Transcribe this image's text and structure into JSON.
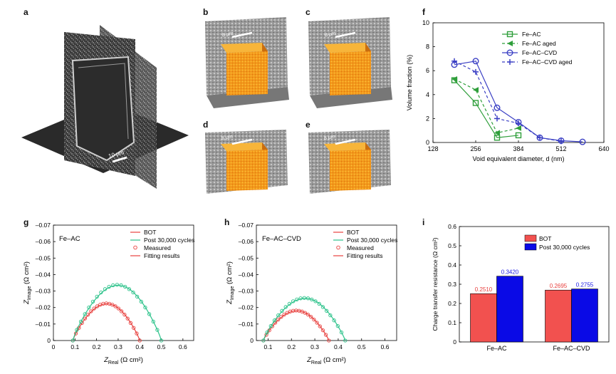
{
  "panel_letters": {
    "a": "a",
    "b": "b",
    "c": "c",
    "d": "d",
    "e": "e",
    "f": "f",
    "g": "g",
    "h": "h",
    "i": "i"
  },
  "scalebars": {
    "a": "10 μm",
    "b": "8 μm",
    "c": "8 μm",
    "d": "8 μm",
    "e": "8 μm"
  },
  "colors": {
    "fe_ac": "#2e9e3a",
    "fe_ac_cvd": "#3a3fc4",
    "bot_line": "#e8413f",
    "post_line": "#2cc28a",
    "bar_bot": "#f2514f",
    "bar_post": "#0a0ae6"
  },
  "chart_data": [
    {
      "id": "f",
      "type": "line",
      "xlabel": "Void equivalent diameter, d (nm)",
      "ylabel": "Volume fraction (%)",
      "xlim": [
        128,
        640
      ],
      "ylim": [
        0,
        10
      ],
      "xticks": [
        128,
        256,
        384,
        512,
        640
      ],
      "yticks": [
        0,
        2,
        4,
        6,
        8,
        10
      ],
      "legend_position": "top-right",
      "series": [
        {
          "name": "Fe–AC",
          "style": "solid",
          "marker": "square",
          "color": "#2e9e3a",
          "x": [
            192,
            256,
            320,
            384
          ],
          "y": [
            5.2,
            3.3,
            0.4,
            0.6
          ]
        },
        {
          "name": "Fe–AC aged",
          "style": "dashed",
          "marker": "triangle",
          "color": "#2e9e3a",
          "x": [
            192,
            256,
            320,
            384
          ],
          "y": [
            5.3,
            4.4,
            0.8,
            1.2
          ]
        },
        {
          "name": "Fe–AC–CVD",
          "style": "solid",
          "marker": "circle",
          "color": "#3a3fc4",
          "x": [
            192,
            256,
            320,
            384,
            448,
            512,
            576
          ],
          "y": [
            6.5,
            6.8,
            2.9,
            1.7,
            0.4,
            0.15,
            0.05
          ]
        },
        {
          "name": "Fe–AC–CVD aged",
          "style": "dashed",
          "marker": "plus",
          "color": "#3a3fc4",
          "x": [
            192,
            256,
            320,
            384,
            448,
            512
          ],
          "y": [
            6.8,
            5.9,
            2.0,
            1.6,
            0.4,
            0.1
          ]
        }
      ]
    },
    {
      "id": "g",
      "type": "scatter",
      "annotation": "Fe–AC",
      "xlabel_main": "Z",
      "xlabel_sub": "Real",
      "xlabel_unit": " (Ω cm²)",
      "ylabel_main": "Z",
      "ylabel_sub": "Image",
      "ylabel_unit": " (Ω cm²)",
      "xlim": [
        0,
        0.65
      ],
      "ylim": [
        0,
        -0.07
      ],
      "xticks": [
        0,
        0.1,
        0.2,
        0.3,
        0.4,
        0.5,
        0.6
      ],
      "xtick_labels": [
        "0",
        "0.1",
        "0.2",
        "0.3",
        "0.4",
        "0.5",
        "0.6"
      ],
      "yticks": [
        0,
        -0.01,
        -0.02,
        -0.03,
        -0.04,
        -0.05,
        -0.06,
        -0.07
      ],
      "ytick_labels": [
        "0",
        "–0.01",
        "–0.02",
        "–0.03",
        "–0.04",
        "–0.05",
        "–0.06",
        "–0.07"
      ],
      "legend": [
        "BOT",
        "Post 30,000 cycles",
        "Measured",
        "Fitting results"
      ],
      "series": [
        {
          "name": "BOT",
          "color": "#e8413f",
          "x0": 0.09,
          "x1": 0.4,
          "peak": -0.0225
        },
        {
          "name": "Post 30,000 cycles",
          "color": "#2cc28a",
          "x0": 0.09,
          "x1": 0.5,
          "peak": -0.0338
        }
      ]
    },
    {
      "id": "h",
      "type": "scatter",
      "annotation": "Fe–AC–CVD",
      "xlabel_main": "Z",
      "xlabel_sub": "Real",
      "xlabel_unit": " (Ω cm²)",
      "ylabel_main": "Z",
      "ylabel_sub": "Image",
      "ylabel_unit": " (Ω cm²)",
      "xlim": [
        0.05,
        0.65
      ],
      "ylim": [
        0,
        -0.07
      ],
      "xticks": [
        0.1,
        0.2,
        0.3,
        0.4,
        0.5,
        0.6
      ],
      "xtick_labels": [
        "0.1",
        "0.2",
        "0.3",
        "0.4",
        "0.5",
        "0.6"
      ],
      "yticks": [
        0,
        -0.01,
        -0.02,
        -0.03,
        -0.04,
        -0.05,
        -0.06,
        -0.07
      ],
      "ytick_labels": [
        "0",
        "–0.01",
        "–0.02",
        "–0.03",
        "–0.04",
        "–0.05",
        "–0.06",
        "–0.07"
      ],
      "legend": [
        "BOT",
        "Post 30,000 cycles",
        "Measured",
        "Fitting results"
      ],
      "series": [
        {
          "name": "BOT",
          "color": "#e8413f",
          "x0": 0.08,
          "x1": 0.36,
          "peak": -0.0182
        },
        {
          "name": "Post 30,000 cycles",
          "color": "#2cc28a",
          "x0": 0.08,
          "x1": 0.43,
          "peak": -0.0258
        }
      ]
    },
    {
      "id": "i",
      "type": "bar",
      "ylabel": "Charge transfer resistance (Ω cm²)",
      "categories": [
        "Fe–AC",
        "Fe–AC–CVD"
      ],
      "ylim": [
        0,
        0.6
      ],
      "yticks": [
        0,
        0.1,
        0.2,
        0.3,
        0.4,
        0.5,
        0.6
      ],
      "ytick_labels": [
        "0",
        "0.1",
        "0.2",
        "0.3",
        "0.4",
        "0.5",
        "0.6"
      ],
      "legend_position": "top-right",
      "series": [
        {
          "name": "BOT",
          "color": "#f2514f",
          "values": [
            0.251,
            0.2695
          ],
          "labels": [
            "0.2510",
            "0.2695"
          ],
          "label_color": "#e8413f"
        },
        {
          "name": "Post 30,000 cycles",
          "color": "#0a0ae6",
          "values": [
            0.342,
            0.2755
          ],
          "labels": [
            "0.3420",
            "0.2755"
          ],
          "label_color": "#1a1ae6"
        }
      ]
    }
  ]
}
